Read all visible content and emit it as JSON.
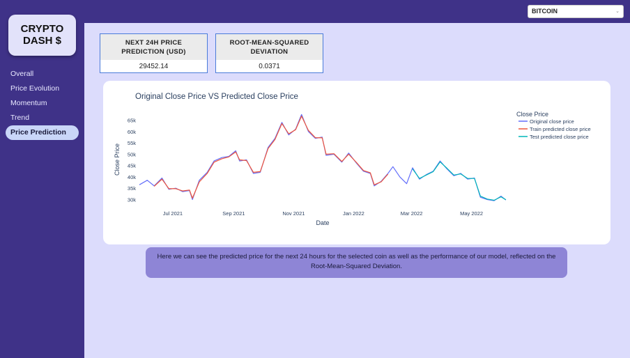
{
  "app": {
    "logo_text": "CRYPTO\nDASH $",
    "logo_line1": "CRYPTO",
    "logo_line2": "DASH $"
  },
  "coin_select": {
    "selected": "BITCOIN",
    "caret": "⌄"
  },
  "sidebar": {
    "items": [
      {
        "label": "Overall",
        "active": false
      },
      {
        "label": "Price Evolution",
        "active": false
      },
      {
        "label": "Momentum",
        "active": false
      },
      {
        "label": "Trend",
        "active": false
      },
      {
        "label": "Price Prediction",
        "active": true
      }
    ]
  },
  "cards": [
    {
      "title_line1": "NEXT 24H PRICE",
      "title_line2": "PREDICTION (USD)",
      "value": "29452.14"
    },
    {
      "title_line1": "ROOT-MEAN-SQUARED",
      "title_line2": "DEVIATION",
      "value": "0.0371"
    }
  ],
  "note": {
    "text": "Here we can see the predicted price for the next 24 hours for the selected coin as well as the performance of our model, reflected on the Root-Mean-Squared Deviation."
  },
  "colors": {
    "original": "#636efa",
    "train": "#ef553b",
    "test": "#00b5b8",
    "sidebar": "#3f3288",
    "page_bg": "#dcdcfc"
  },
  "chart_data": {
    "type": "line",
    "title": "Original Close Price VS Predicted Close Price",
    "xlabel": "Date",
    "ylabel": "Close Price",
    "legend_title": "Close Price",
    "legend_position": "top-right",
    "x_ticks": [
      "Jul 2021",
      "Sep 2021",
      "Nov 2021",
      "Jan 2022",
      "Mar 2022",
      "May 2022"
    ],
    "y_ticks": [
      "30k",
      "35k",
      "40k",
      "45k",
      "50k",
      "55k",
      "60k",
      "65k"
    ],
    "ylim": [
      28000,
      67000
    ],
    "xlim": [
      "2021-05-28",
      "2022-06-10"
    ],
    "series": [
      {
        "name": "Original close price",
        "points": [
          [
            "2021-05-28",
            36500
          ],
          [
            "2021-06-05",
            38500
          ],
          [
            "2021-06-12",
            36000
          ],
          [
            "2021-06-20",
            39500
          ],
          [
            "2021-06-27",
            34500
          ],
          [
            "2021-07-04",
            35000
          ],
          [
            "2021-07-11",
            33500
          ],
          [
            "2021-07-18",
            34000
          ],
          [
            "2021-07-21",
            30000
          ],
          [
            "2021-07-28",
            38500
          ],
          [
            "2021-08-05",
            42000
          ],
          [
            "2021-08-12",
            47000
          ],
          [
            "2021-08-20",
            48500
          ],
          [
            "2021-08-27",
            49000
          ],
          [
            "2021-09-03",
            51500
          ],
          [
            "2021-09-07",
            47000
          ],
          [
            "2021-09-14",
            47500
          ],
          [
            "2021-09-21",
            41500
          ],
          [
            "2021-09-28",
            42000
          ],
          [
            "2021-10-06",
            53000
          ],
          [
            "2021-10-13",
            57000
          ],
          [
            "2021-10-20",
            64000
          ],
          [
            "2021-10-27",
            58500
          ],
          [
            "2021-11-03",
            61000
          ],
          [
            "2021-11-09",
            67500
          ],
          [
            "2021-11-16",
            60000
          ],
          [
            "2021-11-23",
            57000
          ],
          [
            "2021-11-30",
            57500
          ],
          [
            "2021-12-04",
            49500
          ],
          [
            "2021-12-12",
            50000
          ],
          [
            "2021-12-20",
            46500
          ],
          [
            "2021-12-27",
            50500
          ],
          [
            "2022-01-04",
            46000
          ],
          [
            "2022-01-11",
            42500
          ],
          [
            "2022-01-18",
            41500
          ],
          [
            "2022-01-22",
            36000
          ],
          [
            "2022-01-29",
            38000
          ],
          [
            "2022-02-05",
            41500
          ],
          [
            "2022-02-10",
            44500
          ],
          [
            "2022-02-17",
            40000
          ],
          [
            "2022-02-24",
            37000
          ],
          [
            "2022-03-02",
            44000
          ],
          [
            "2022-03-09",
            39000
          ],
          [
            "2022-03-16",
            41000
          ],
          [
            "2022-03-23",
            42500
          ],
          [
            "2022-03-30",
            47000
          ],
          [
            "2022-04-06",
            43500
          ],
          [
            "2022-04-13",
            40500
          ],
          [
            "2022-04-20",
            41500
          ],
          [
            "2022-04-27",
            39000
          ],
          [
            "2022-05-04",
            39500
          ],
          [
            "2022-05-10",
            31000
          ],
          [
            "2022-05-17",
            30000
          ],
          [
            "2022-05-24",
            29500
          ],
          [
            "2022-05-31",
            31500
          ],
          [
            "2022-06-05",
            29800
          ]
        ]
      },
      {
        "name": "Train predicted close price",
        "points": [
          [
            "2021-06-12",
            35800
          ],
          [
            "2021-06-20",
            39000
          ],
          [
            "2021-06-27",
            34800
          ],
          [
            "2021-07-04",
            34800
          ],
          [
            "2021-07-11",
            33800
          ],
          [
            "2021-07-18",
            34200
          ],
          [
            "2021-07-21",
            30600
          ],
          [
            "2021-07-28",
            37800
          ],
          [
            "2021-08-05",
            41500
          ],
          [
            "2021-08-12",
            46500
          ],
          [
            "2021-08-20",
            48000
          ],
          [
            "2021-08-27",
            48800
          ],
          [
            "2021-09-03",
            51000
          ],
          [
            "2021-09-07",
            47500
          ],
          [
            "2021-09-14",
            47200
          ],
          [
            "2021-09-21",
            42000
          ],
          [
            "2021-09-28",
            42300
          ],
          [
            "2021-10-06",
            52500
          ],
          [
            "2021-10-13",
            56500
          ],
          [
            "2021-10-20",
            63500
          ],
          [
            "2021-10-27",
            59000
          ],
          [
            "2021-11-03",
            60800
          ],
          [
            "2021-11-09",
            66800
          ],
          [
            "2021-11-16",
            60500
          ],
          [
            "2021-11-23",
            57300
          ],
          [
            "2021-11-30",
            57200
          ],
          [
            "2021-12-04",
            50000
          ],
          [
            "2021-12-12",
            50200
          ],
          [
            "2021-12-20",
            46800
          ],
          [
            "2021-12-27",
            50000
          ],
          [
            "2022-01-04",
            46300
          ],
          [
            "2022-01-11",
            42800
          ],
          [
            "2022-01-18",
            41800
          ],
          [
            "2022-01-22",
            36500
          ],
          [
            "2022-01-29",
            37800
          ],
          [
            "2022-02-05",
            41200
          ]
        ]
      },
      {
        "name": "Test predicted close price",
        "points": [
          [
            "2022-03-02",
            43500
          ],
          [
            "2022-03-09",
            39300
          ],
          [
            "2022-03-16",
            40800
          ],
          [
            "2022-03-23",
            42300
          ],
          [
            "2022-03-30",
            46600
          ],
          [
            "2022-04-06",
            43800
          ],
          [
            "2022-04-13",
            40800
          ],
          [
            "2022-04-20",
            41300
          ],
          [
            "2022-04-27",
            39300
          ],
          [
            "2022-05-04",
            39300
          ],
          [
            "2022-05-10",
            31500
          ],
          [
            "2022-05-17",
            30200
          ],
          [
            "2022-05-24",
            29700
          ],
          [
            "2022-05-31",
            31200
          ],
          [
            "2022-06-05",
            29900
          ]
        ]
      }
    ]
  }
}
